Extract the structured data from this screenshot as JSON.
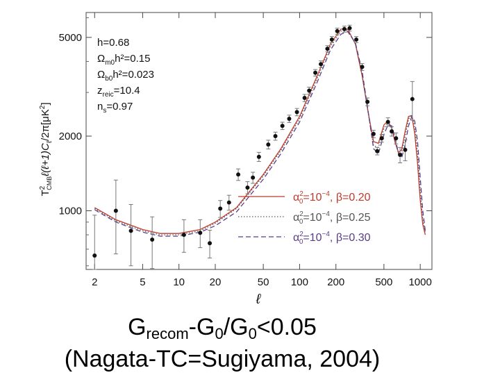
{
  "chart_data": {
    "type": "scatter",
    "x_scale": "log",
    "y_scale": "log",
    "xlim": [
      1.7,
      1250
    ],
    "ylim": [
      580,
      6300
    ],
    "x_ticks": [
      2,
      5,
      10,
      20,
      50,
      100,
      200,
      500,
      1000
    ],
    "x_tick_labels": [
      "2",
      "5",
      "10",
      "20",
      "50",
      "100",
      "200",
      "500",
      "1000"
    ],
    "y_ticks": [
      1000,
      2000,
      5000
    ],
    "y_tick_labels": [
      "1000",
      "2000",
      "5000"
    ],
    "xlabel": "ℓ",
    "ylabel_parts": {
      "T": "T",
      "sup": "2",
      "sub": "CMB",
      "rest": "ℓ(ℓ+1)C",
      "sub2": "ℓ",
      "tail": "/2π[μK",
      "sup2": "2",
      "end": "]"
    },
    "params": [
      {
        "main": "h=0.68",
        "sub": "",
        "after": ""
      },
      {
        "main": "Ω",
        "sub": "m0",
        "after": "h²=0.15"
      },
      {
        "main": "Ω",
        "sub": "b0",
        "after": "h²=0.023"
      },
      {
        "main": "z",
        "sub": "reic",
        "after": "=10.4"
      },
      {
        "main": "n",
        "sub": "s",
        "after": "=0.97"
      }
    ],
    "legend_position": "lower-right",
    "series_points": {
      "x": [
        2,
        3,
        4,
        6,
        11,
        15,
        18,
        22,
        26,
        31,
        37,
        41,
        46,
        55,
        63,
        72,
        82,
        95,
        110,
        120,
        135,
        150,
        170,
        185,
        205,
        235,
        260,
        295,
        330,
        365,
        410,
        440,
        480,
        540,
        580,
        630,
        680,
        750,
        860
      ],
      "y": [
        660,
        1000,
        830,
        765,
        800,
        815,
        740,
        1020,
        1080,
        1400,
        1240,
        1360,
        1650,
        1850,
        2000,
        2200,
        2350,
        2500,
        2850,
        3050,
        3600,
        3900,
        4500,
        4900,
        5300,
        5400,
        5450,
        4900,
        3800,
        2750,
        2040,
        1740,
        1960,
        2280,
        2090,
        1960,
        1680,
        1760,
        2820
      ],
      "err": [
        300,
        330,
        230,
        180,
        120,
        105,
        95,
        80,
        75,
        75,
        70,
        70,
        70,
        75,
        75,
        75,
        80,
        85,
        95,
        100,
        110,
        120,
        130,
        140,
        150,
        150,
        150,
        140,
        120,
        100,
        70,
        60,
        70,
        90,
        90,
        100,
        120,
        170,
        500
      ]
    },
    "series": [
      {
        "label_alpha": "α",
        "label_alpha_sub": "0",
        "label_alpha_sup": "2",
        "label_value": "=10",
        "label_exp": "−4",
        "label_beta": ", β=0.20",
        "color": "#c0392b",
        "style": "solid",
        "x": [
          2,
          3,
          5,
          7,
          10,
          15,
          20,
          30,
          50,
          70,
          100,
          140,
          180,
          220,
          250,
          290,
          330,
          370,
          410,
          450,
          500,
          540,
          580,
          620,
          660,
          700,
          750,
          800,
          850,
          900,
          950,
          1000,
          1050,
          1100
        ],
        "y": [
          1030,
          920,
          840,
          810,
          810,
          840,
          900,
          1030,
          1400,
          1780,
          2400,
          3500,
          4700,
          5400,
          5400,
          4700,
          3500,
          2500,
          1900,
          1870,
          2220,
          2300,
          2150,
          1880,
          1720,
          1760,
          2100,
          2400,
          2420,
          2050,
          1550,
          1100,
          880,
          800
        ]
      },
      {
        "label_alpha": "α",
        "label_alpha_sub": "0",
        "label_alpha_sup": "2",
        "label_value": "=10",
        "label_exp": "−4",
        "label_beta": ", β=0.25",
        "color": "#555555",
        "style": "dotted",
        "x": [
          2,
          3,
          5,
          7,
          10,
          15,
          20,
          30,
          50,
          70,
          100,
          140,
          180,
          220,
          250,
          290,
          330,
          370,
          410,
          450,
          500,
          540,
          580,
          620,
          660,
          700,
          750,
          800,
          850,
          900,
          950,
          1000,
          1050,
          1100
        ],
        "y": [
          1020,
          910,
          830,
          800,
          800,
          830,
          890,
          1020,
          1380,
          1750,
          2350,
          3420,
          4600,
          5300,
          5350,
          4720,
          3550,
          2480,
          1830,
          1800,
          2150,
          2270,
          2170,
          1900,
          1700,
          1700,
          2000,
          2340,
          2440,
          2180,
          1700,
          1200,
          920,
          810
        ]
      },
      {
        "label_alpha": "α",
        "label_alpha_sub": "0",
        "label_alpha_sup": "2",
        "label_value": "=10",
        "label_exp": "−4",
        "label_beta": ", β=0.30",
        "color": "#5b3c88",
        "style": "dashed",
        "x": [
          2,
          3,
          5,
          7,
          10,
          15,
          20,
          30,
          50,
          70,
          100,
          140,
          180,
          220,
          250,
          290,
          330,
          370,
          410,
          450,
          500,
          540,
          580,
          620,
          660,
          700,
          750,
          800,
          850,
          900,
          950,
          1000,
          1050,
          1100
        ],
        "y": [
          1010,
          900,
          820,
          790,
          790,
          820,
          870,
          990,
          1340,
          1700,
          2280,
          3300,
          4450,
          5150,
          5280,
          4750,
          3650,
          2520,
          1780,
          1700,
          2030,
          2220,
          2200,
          1960,
          1700,
          1630,
          1850,
          2200,
          2400,
          2300,
          1900,
          1350,
          1000,
          830
        ]
      }
    ]
  },
  "caption": {
    "line1_pre": "G",
    "line1_sub1": "recom",
    "line1_mid": "-G",
    "line1_sub2": "0",
    "line1_mid2": "/G",
    "line1_sub3": "0",
    "line1_post": "<0.05",
    "line2": "(Nagata-TC=Sugiyama, 2004)"
  }
}
